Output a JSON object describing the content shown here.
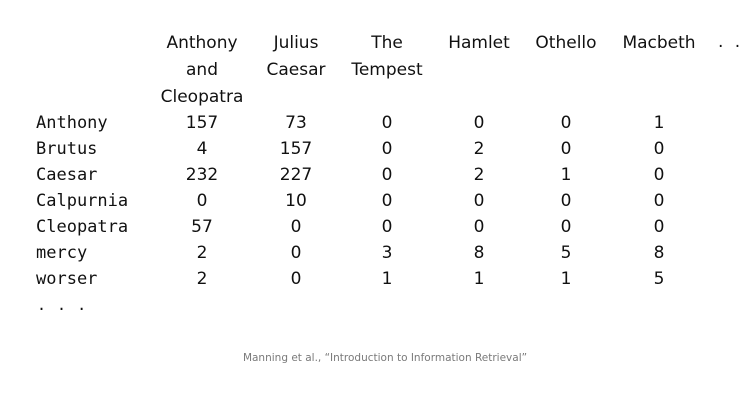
{
  "matrix": {
    "columns": [
      "Anthony\nand\nCleopatra",
      "Julius\nCaesar",
      "The\nTempest",
      "Hamlet",
      "Othello",
      "Macbeth"
    ],
    "column_ellipsis": ". . .",
    "rows": [
      {
        "term": "Anthony",
        "values": [
          "157",
          "73",
          "0",
          "0",
          "0",
          "1"
        ]
      },
      {
        "term": "Brutus",
        "values": [
          "4",
          "157",
          "0",
          "2",
          "0",
          "0"
        ]
      },
      {
        "term": "Caesar",
        "values": [
          "232",
          "227",
          "0",
          "2",
          "1",
          "0"
        ]
      },
      {
        "term": "Calpurnia",
        "values": [
          "0",
          "10",
          "0",
          "0",
          "0",
          "0"
        ]
      },
      {
        "term": "Cleopatra",
        "values": [
          "57",
          "0",
          "0",
          "0",
          "0",
          "0"
        ]
      },
      {
        "term": "mercy",
        "values": [
          "2",
          "0",
          "3",
          "8",
          "5",
          "8"
        ]
      },
      {
        "term": "worser",
        "values": [
          "2",
          "0",
          "1",
          "1",
          "1",
          "5"
        ]
      }
    ],
    "row_ellipsis": ". . ."
  },
  "footer": {
    "citation": "Manning et al., “Introduction to Information Retrieval”"
  }
}
